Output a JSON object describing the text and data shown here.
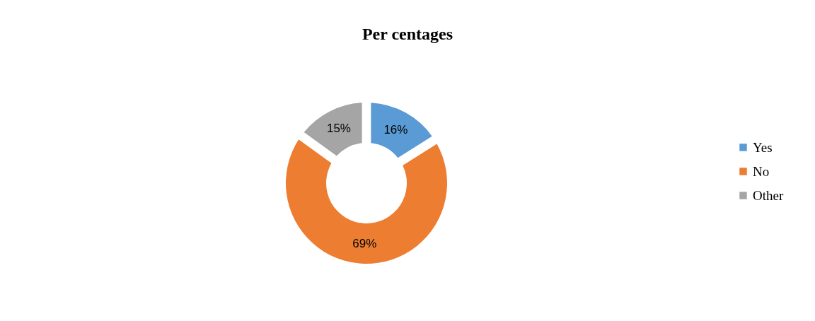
{
  "chart_data": {
    "type": "donut",
    "title": "Per centages",
    "categories": [
      "Yes",
      "No",
      "Other"
    ],
    "values": [
      16,
      69,
      15
    ],
    "colors": [
      "#5b9bd5",
      "#ed7d31",
      "#a5a5a5"
    ],
    "value_labels": [
      "16%",
      "69%",
      "15%"
    ],
    "legend": "right"
  }
}
